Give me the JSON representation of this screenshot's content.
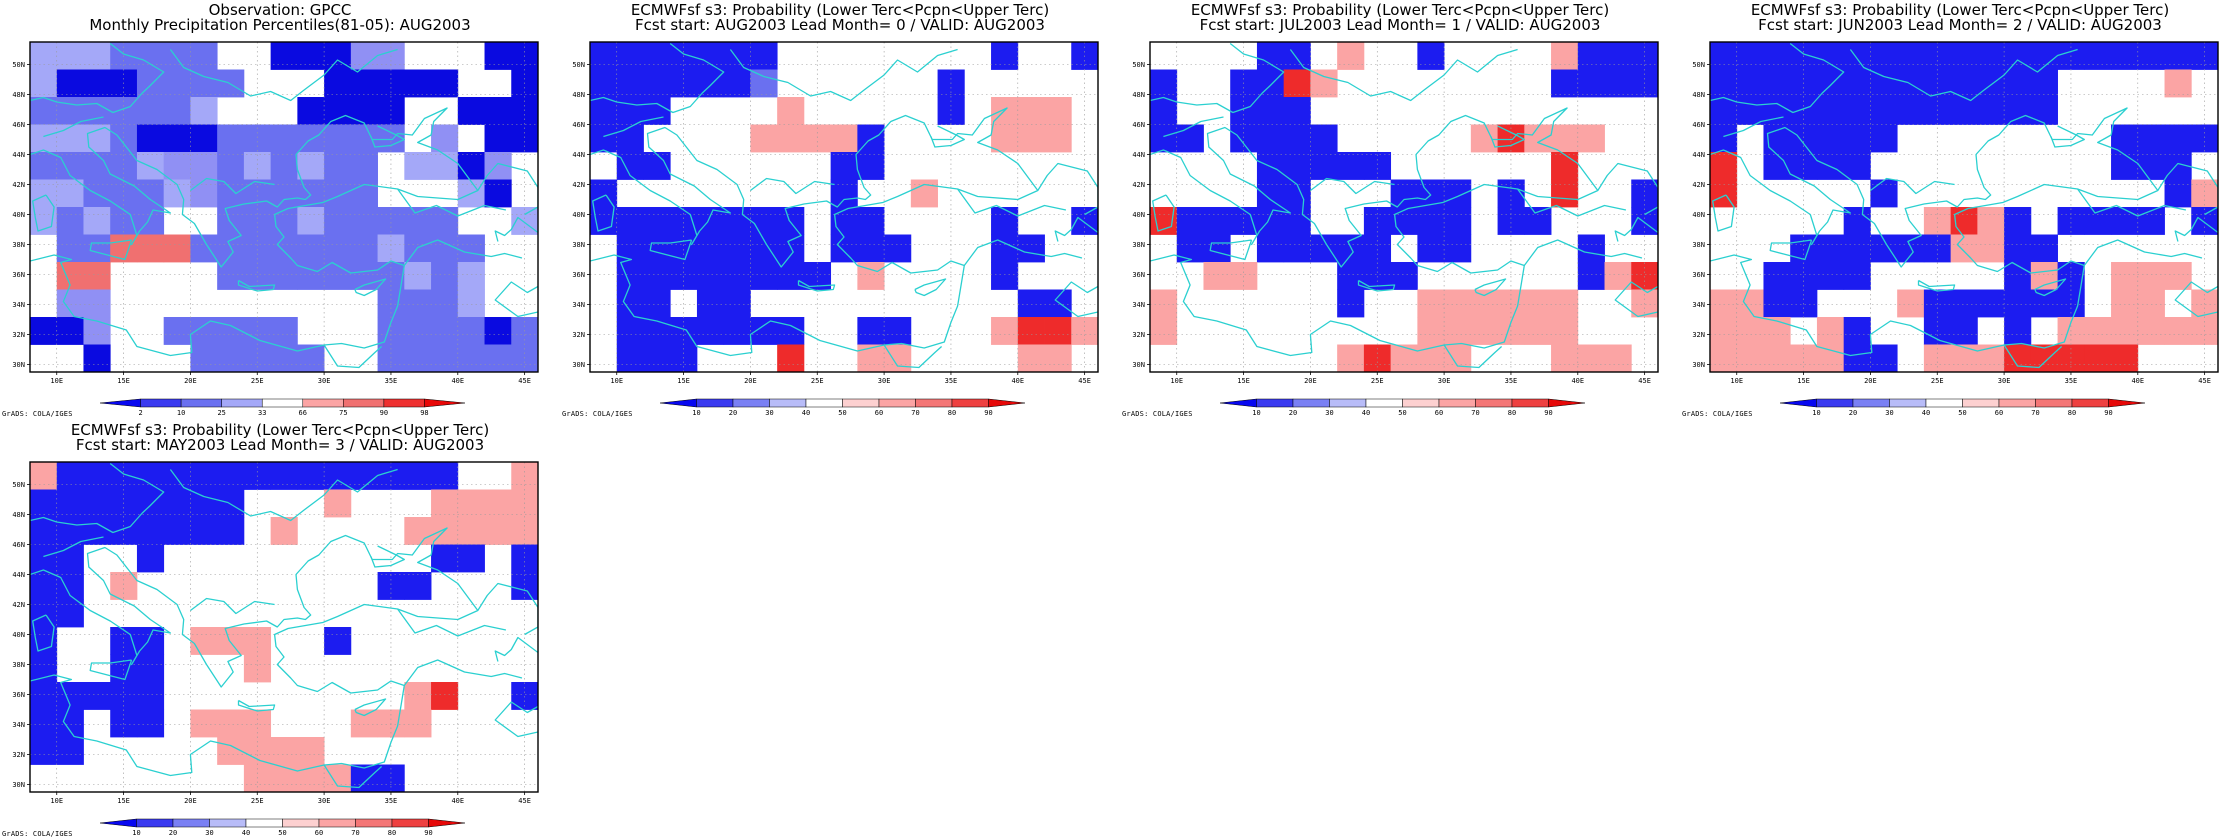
{
  "panels": [
    {
      "title": "Observation: GPCC",
      "subtitle": "Monthly Precipitation Percentiles(81-05): AUG2003",
      "legend": [
        "2",
        "10",
        "25",
        "33",
        "66",
        "75",
        "90",
        "98"
      ],
      "grid": [
        "cccbbbbWWDDDddWWWDD",
        "cDDDbbbbWWWDDDDDWWD",
        "bbbbbbcWWWDDDDWWDDD",
        "cccbDDDbbbbbbbWdWDD",
        "bbbbcddbcbcbbWccDdW",
        "ccbbbcdbbbbbbWWWcDW",
        "cbcbbWWbbbcbbbbbWWc",
        "WbbCCCbbbbbbbcbbbWW",
        "WCCWWWWbbbbbbbcbcWW",
        "WddWWWWWWWWWWbbbcWW",
        "DDdWWbbbbbWWWbbbbDb",
        "WWDWWWbbbbbWWbbbbbb"
      ]
    },
    {
      "title": "ECMWFsf s3: Probability (Lower Terc<Pcpn<Upper Terc)",
      "subtitle": "Fcst start: AUG2003   Lead Month= 0 / VALID: AUG2003",
      "legend": [
        "10",
        "20",
        "30",
        "40",
        "50",
        "60",
        "70",
        "80",
        "90"
      ],
      "grid": [
        "BBBBBBBWWWWWWWWBWWB",
        "BBBBBBbWWWWWWBWWWWW",
        "BBBWWWWPWWWWWBWPPPW",
        "BBWWWWPPPPBWWWWPPPW",
        "WBBWWWWWWBBWWWWWWWW",
        "BWWWWWWWWBWWPWWWWWW",
        "BBBBBBBBWBBWWWWBWWB",
        "WBBBBBBBWBBBWWWBBWW",
        "WBBBBBBBBWPWWWWBWWW",
        "WBBWBBWWWWWWWWWWBBW",
        "WBBBBBBBWWBBWWWPRRP",
        "WBBBWWWRWWPPWWWWPPW"
      ]
    },
    {
      "title": "ECMWFsf s3: Probability (Lower Terc<Pcpn<Upper Terc)",
      "subtitle": "Fcst start: JUL2003   Lead Month= 1 / VALID: AUG2003",
      "legend": [
        "10",
        "20",
        "30",
        "40",
        "50",
        "60",
        "70",
        "80",
        "90"
      ],
      "grid": [
        "WWWWBBWPWWBWWWWPBBB",
        "BWWBBRPWWWWWWWWBBBB",
        "BWWBBBWWWWWWWWWWWWW",
        "BBWBBBBWWWWWPRPPPWW",
        "WWWWBBBBBWWWWWWRWWW",
        "WWWWBBWWWBBBWBWRWWB",
        "RBBBBBWWBBBBWBBWWWB",
        "WBBWBBBBBWBBWWWWBWW",
        "WWPPWWWBBBWWWWWWBPR",
        "PWWWWWWBWWPPPPPPWWP",
        "PWWWWWWWWWPPPPPPWWW",
        "WWWWWWWPRPPPWWWPPPW"
      ]
    },
    {
      "title": "ECMWFsf s3: Probability (Lower Terc<Pcpn<Upper Terc)",
      "subtitle": "Fcst start: JUN2003   Lead Month= 2 / VALID: AUG2003",
      "legend": [
        "10",
        "20",
        "30",
        "40",
        "50",
        "60",
        "70",
        "80",
        "90"
      ],
      "grid": [
        "BBBBBBBBBBBBBBBBBBB",
        "BBBBBBBBBBBBBWWWWPW",
        "BBBBBBBBBBBBBWWWWWW",
        "BWBBBBBWWWWWWWWBBBB",
        "RWBBBBWWWWWWWWWBBBW",
        "RWWWWWBWWWWWWWWWWBP",
        "WWWWWBWWPRPBWBBBBWB",
        "WWWBBBBBBPPBBWWWWWW",
        "WWBBBBWWWWWBPBWPPPW",
        "PPBBWWWPBBBBBBWPPWP",
        "PPPWPBWWBBWBWPPPPPP",
        "PPPPPBBWPPPRRRRRWWW"
      ]
    },
    {
      "title": "ECMWFsf s3: Probability (Lower Terc<Pcpn<Upper Terc)",
      "subtitle": "Fcst start: MAY2003   Lead Month= 3 / VALID: AUG2003",
      "legend": [
        "10",
        "20",
        "30",
        "40",
        "50",
        "60",
        "70",
        "80",
        "90"
      ],
      "grid": [
        "PBBBBBBBBBBBBBBBWWP",
        "BBBBBBBBWWWPWWWPPPP",
        "BBBBBBBBWPWWWWPPPPP",
        "BBWWBWWWWWWWWWWBBWB",
        "BBWPWWWWWWWWWBBWWWB",
        "BBWWWWWWWWWWWWWWWWW",
        "BWWBBWPPPWWBWWWWWWW",
        "BWWBBWWWPWWWWWWWWWW",
        "BBBBBWWWWWWWWWPRWWB",
        "BBWBBWPPPWWWPPPWWWW",
        "BBWWWWWPPPPWWWWWWWW",
        "WWWWWWWWPPPPBBWWWWW"
      ]
    }
  ],
  "axes": {
    "lat_labels": [
      "50N",
      "48N",
      "46N",
      "44N",
      "42N",
      "40N",
      "38N",
      "36N",
      "34N",
      "32N",
      "30N"
    ],
    "lon_labels": [
      "10E",
      "15E",
      "20E",
      "25E",
      "30E",
      "35E",
      "40E",
      "45E"
    ]
  },
  "credit": "GrADS: COLA/IGES",
  "palette": {
    "W": "#ffffff",
    "b": "#6a70f0",
    "c": "#a4a8f8",
    "B": "#1c1cf0",
    "D": "#0a0ae0",
    "d": "#9090f4",
    "P": "#fba4a4",
    "C": "#f07070",
    "R": "#ee2b2b",
    "coast": "#2bd0d0"
  },
  "legend_colors_obs": [
    "#0808f0",
    "#3a3af0",
    "#6a70f0",
    "#a4a8f8",
    "#ffffff",
    "#fba4a4",
    "#f07070",
    "#ee3030",
    "#e80808"
  ],
  "legend_colors_fc": [
    "#0808f0",
    "#3a3af0",
    "#7a80f4",
    "#b8bcf8",
    "#ffffff",
    "#fdd0d0",
    "#fba4a4",
    "#f47676",
    "#ee4040",
    "#e60808"
  ]
}
